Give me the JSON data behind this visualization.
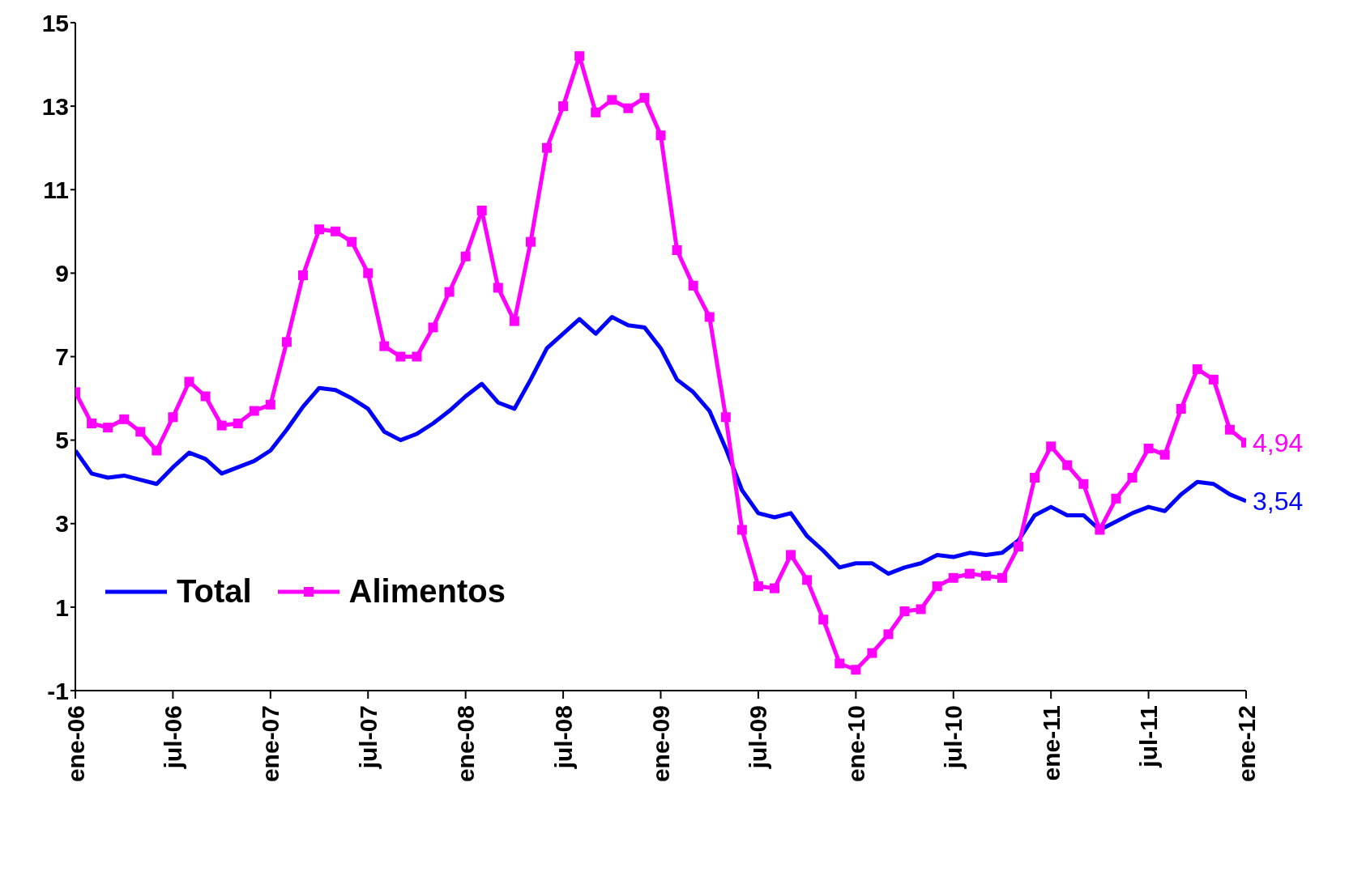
{
  "chart_data": {
    "type": "line",
    "x": [
      "2006-01",
      "2006-02",
      "2006-03",
      "2006-04",
      "2006-05",
      "2006-06",
      "2006-07",
      "2006-08",
      "2006-09",
      "2006-10",
      "2006-11",
      "2006-12",
      "2007-01",
      "2007-02",
      "2007-03",
      "2007-04",
      "2007-05",
      "2007-06",
      "2007-07",
      "2007-08",
      "2007-09",
      "2007-10",
      "2007-11",
      "2007-12",
      "2008-01",
      "2008-02",
      "2008-03",
      "2008-04",
      "2008-05",
      "2008-06",
      "2008-07",
      "2008-08",
      "2008-09",
      "2008-10",
      "2008-11",
      "2008-12",
      "2009-01",
      "2009-02",
      "2009-03",
      "2009-04",
      "2009-05",
      "2009-06",
      "2009-07",
      "2009-08",
      "2009-09",
      "2009-10",
      "2009-11",
      "2009-12",
      "2010-01",
      "2010-02",
      "2010-03",
      "2010-04",
      "2010-05",
      "2010-06",
      "2010-07",
      "2010-08",
      "2010-09",
      "2010-10",
      "2010-11",
      "2010-12",
      "2011-01",
      "2011-02",
      "2011-03",
      "2011-04",
      "2011-05",
      "2011-06",
      "2011-07",
      "2011-08",
      "2011-09",
      "2011-10",
      "2011-11",
      "2011-12",
      "2012-01"
    ],
    "series": [
      {
        "name": "Total",
        "color": "#0000ff",
        "marker": "none",
        "values": [
          4.75,
          4.2,
          4.1,
          4.15,
          4.05,
          3.95,
          4.35,
          4.7,
          4.55,
          4.2,
          4.35,
          4.5,
          4.75,
          5.25,
          5.8,
          6.25,
          6.2,
          6.0,
          5.75,
          5.2,
          5.0,
          5.15,
          5.4,
          5.7,
          6.05,
          6.35,
          5.9,
          5.75,
          6.45,
          7.2,
          7.55,
          7.9,
          7.55,
          7.95,
          7.75,
          7.7,
          7.2,
          6.45,
          6.15,
          5.7,
          4.8,
          3.8,
          3.25,
          3.15,
          3.25,
          2.7,
          2.35,
          1.95,
          2.05,
          2.05,
          1.8,
          1.95,
          2.05,
          2.25,
          2.2,
          2.3,
          2.25,
          2.3,
          2.6,
          3.2,
          3.4,
          3.2,
          3.2,
          2.85,
          3.05,
          3.25,
          3.4,
          3.3,
          3.7,
          4.0,
          3.95,
          3.7,
          3.54
        ]
      },
      {
        "name": "Alimentos",
        "color": "#ff00ff",
        "marker": "square",
        "values": [
          6.15,
          5.4,
          5.3,
          5.5,
          5.2,
          4.75,
          5.55,
          6.4,
          6.05,
          5.35,
          5.4,
          5.7,
          5.85,
          7.35,
          8.95,
          10.05,
          10.0,
          9.75,
          9.0,
          7.25,
          7.0,
          7.0,
          7.7,
          8.55,
          9.4,
          10.5,
          8.65,
          7.85,
          9.75,
          12.0,
          13.0,
          14.2,
          12.85,
          13.15,
          12.95,
          13.2,
          12.3,
          9.55,
          8.7,
          7.95,
          5.55,
          2.85,
          1.5,
          1.45,
          2.25,
          1.65,
          0.7,
          -0.35,
          -0.5,
          -0.1,
          0.35,
          0.9,
          0.95,
          1.5,
          1.7,
          1.8,
          1.75,
          1.7,
          2.45,
          4.1,
          4.85,
          4.4,
          3.95,
          2.85,
          3.6,
          4.1,
          4.8,
          4.65,
          5.75,
          6.7,
          6.45,
          5.25,
          4.94
        ]
      }
    ],
    "annotations": [
      {
        "text": "4,94",
        "x": "2012-01",
        "y": 4.94
      },
      {
        "text": "3,54",
        "x": "2012-01",
        "y": 3.54
      }
    ],
    "xlim": [
      "2006-01",
      "2012-01"
    ],
    "xticks": [
      {
        "value": "2006-01",
        "label": "ene-06"
      },
      {
        "value": "2006-07",
        "label": "jul-06"
      },
      {
        "value": "2007-01",
        "label": "ene-07"
      },
      {
        "value": "2007-07",
        "label": "jul-07"
      },
      {
        "value": "2008-01",
        "label": "ene-08"
      },
      {
        "value": "2008-07",
        "label": "jul-08"
      },
      {
        "value": "2009-01",
        "label": "ene-09"
      },
      {
        "value": "2009-07",
        "label": "jul-09"
      },
      {
        "value": "2010-01",
        "label": "ene-10"
      },
      {
        "value": "2010-07",
        "label": "jul-10"
      },
      {
        "value": "2011-01",
        "label": "ene-11"
      },
      {
        "value": "2011-07",
        "label": "jul-11"
      },
      {
        "value": "2012-01",
        "label": "ene-12"
      }
    ],
    "ylim": [
      -1,
      15
    ],
    "yticks": [
      -1,
      1,
      3,
      5,
      7,
      9,
      11,
      13,
      15
    ],
    "grid": false,
    "legend": "bottom left",
    "line_style": "solid"
  }
}
